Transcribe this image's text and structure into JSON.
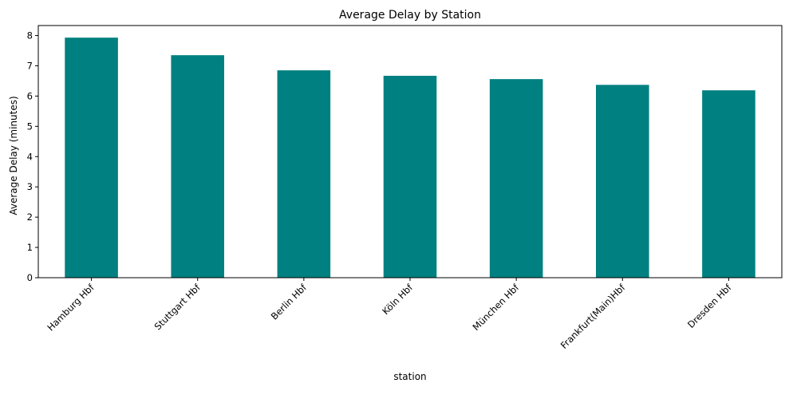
{
  "chart_data": {
    "type": "bar",
    "title": "Average Delay by Station",
    "xlabel": "station",
    "ylabel": "Average Delay (minutes)",
    "categories": [
      "Hamburg Hbf",
      "Stuttgart Hbf",
      "Berlin Hbf",
      "Köln Hbf",
      "München Hbf",
      "Frankfurt(Main)Hbf",
      "Dresden Hbf"
    ],
    "values": [
      7.93,
      7.35,
      6.85,
      6.67,
      6.56,
      6.37,
      6.19
    ],
    "ylim": [
      0,
      8.33
    ],
    "yticks": [
      0,
      1,
      2,
      3,
      4,
      5,
      6,
      7,
      8
    ],
    "grid": false,
    "legend": "none",
    "bar_color": "#008080"
  }
}
